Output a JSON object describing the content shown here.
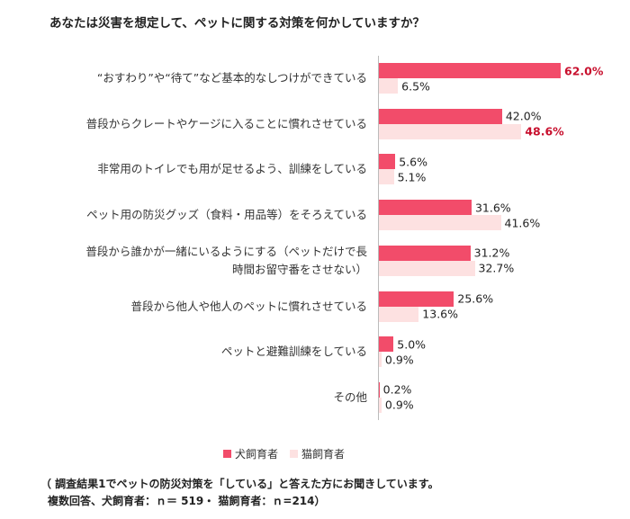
{
  "chart_data": {
    "type": "bar",
    "orientation": "horizontal",
    "title": "あなたは災害を想定して、ペットに関する対策を何かしていますか？",
    "categories": [
      "“おすわり”や“待て”など基本的なしつけができている",
      "普段からクレートやケージに入ることに慣れさせている",
      "非常用のトイレでも用が足せるよう、訓練をしている",
      "ペット用の防災グッズ（食料・用品等）をそろえている",
      "普段から誰かが一緒にいるようにする（ペットだけで長時間お留守番をさせない）",
      "普段から他人や他人のペットに慣れさせている",
      "ペットと避難訓練をしている",
      "その他"
    ],
    "series": [
      {
        "name": "犬飼育者",
        "color": "#f24c6a",
        "values": [
          62.0,
          42.0,
          5.6,
          31.6,
          31.2,
          25.6,
          5.0,
          0.2
        ],
        "value_labels": [
          "62.0%",
          "42.0%",
          "5.6%",
          "31.6%",
          "31.2%",
          "25.6%",
          "5.0%",
          "0.2%"
        ]
      },
      {
        "name": "猫飼育者",
        "color": "#fde1e1",
        "values": [
          6.5,
          48.6,
          5.1,
          41.6,
          32.7,
          13.6,
          0.9,
          0.9
        ],
        "value_labels": [
          "6.5%",
          "48.6%",
          "5.1%",
          "41.6%",
          "32.7%",
          "13.6%",
          "0.9%",
          "0.9%"
        ]
      }
    ],
    "highlight_color": "#c8102e",
    "notes": [
      "（ 調査結果1でペットの防災対策を「している」と答えた方にお聞きしています。",
      "複数回答、犬飼育者：ｎ＝ 519・ 猫飼育者：ｎ=214）"
    ]
  }
}
